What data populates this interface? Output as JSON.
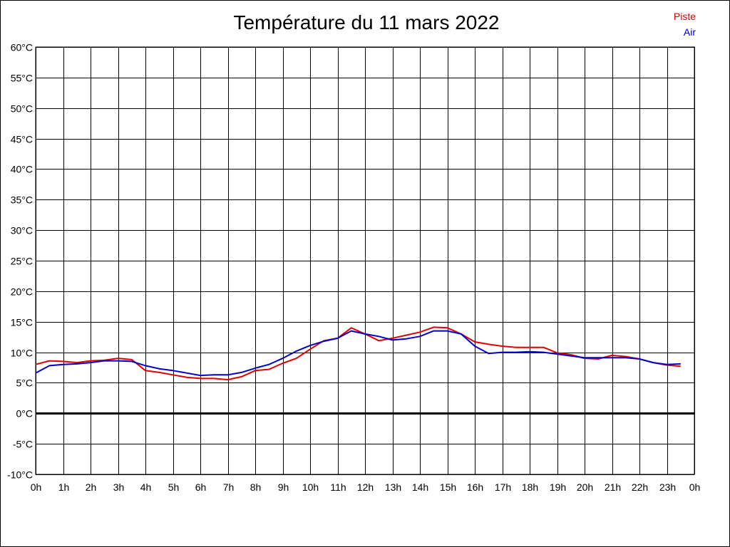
{
  "chart_data": {
    "type": "line",
    "title": "Température du 11 mars 2022",
    "xlabel": "",
    "ylabel": "",
    "xlim": [
      0,
      24
    ],
    "ylim": [
      -10,
      60
    ],
    "grid": true,
    "legend_position": "top-right",
    "x_ticks": [
      "0h",
      "1h",
      "2h",
      "3h",
      "4h",
      "5h",
      "6h",
      "7h",
      "8h",
      "9h",
      "10h",
      "11h",
      "12h",
      "13h",
      "14h",
      "15h",
      "16h",
      "17h",
      "18h",
      "19h",
      "20h",
      "21h",
      "22h",
      "23h",
      "0h"
    ],
    "y_ticks": [
      "-10°C",
      "-5°C",
      "0°C",
      "5°C",
      "10°C",
      "15°C",
      "20°C",
      "25°C",
      "30°C",
      "35°C",
      "40°C",
      "45°C",
      "50°C",
      "55°C",
      "60°C"
    ],
    "series": [
      {
        "name": "Piste",
        "color": "#e00000",
        "x": [
          0,
          0.5,
          1,
          1.5,
          2,
          2.5,
          3,
          3.5,
          4,
          4.5,
          5,
          5.5,
          6,
          6.5,
          7,
          7.5,
          8,
          8.5,
          9,
          9.5,
          10,
          10.5,
          11,
          11.5,
          12,
          12.5,
          13,
          13.5,
          14,
          14.5,
          15,
          15.5,
          16,
          16.5,
          17,
          17.5,
          18,
          18.5,
          19,
          19.5,
          20,
          20.5,
          21,
          21.5,
          22,
          22.5,
          23,
          23.5
        ],
        "values": [
          8.0,
          8.6,
          8.5,
          8.3,
          8.6,
          8.7,
          9.0,
          8.8,
          7.0,
          6.7,
          6.3,
          5.9,
          5.7,
          5.7,
          5.5,
          6.0,
          7.0,
          7.2,
          8.2,
          9.0,
          10.5,
          11.9,
          12.3,
          14.0,
          13.0,
          11.9,
          12.3,
          12.8,
          13.3,
          14.1,
          14.0,
          13.0,
          11.7,
          11.3,
          11.0,
          10.8,
          10.8,
          10.8,
          9.9,
          9.6,
          9.0,
          8.9,
          9.5,
          9.3,
          8.9,
          8.3,
          7.9,
          7.7
        ]
      },
      {
        "name": "Air",
        "color": "#0000cc",
        "x": [
          0,
          0.5,
          1,
          1.5,
          2,
          2.5,
          3,
          3.5,
          4,
          4.5,
          5,
          5.5,
          6,
          6.5,
          7,
          7.5,
          8,
          8.5,
          9,
          9.5,
          10,
          10.5,
          11,
          11.5,
          12,
          12.5,
          13,
          13.5,
          14,
          14.5,
          15,
          15.5,
          16,
          16.5,
          17,
          17.5,
          18,
          18.5,
          19,
          19.5,
          20,
          20.5,
          21,
          21.5,
          22,
          22.5,
          23,
          23.5
        ],
        "values": [
          6.6,
          7.8,
          8.0,
          8.1,
          8.3,
          8.6,
          8.6,
          8.5,
          7.8,
          7.3,
          7.0,
          6.6,
          6.2,
          6.3,
          6.3,
          6.7,
          7.4,
          8.0,
          9.0,
          10.2,
          11.1,
          11.8,
          12.3,
          13.5,
          13.0,
          12.6,
          12.0,
          12.2,
          12.6,
          13.5,
          13.5,
          13.0,
          11.0,
          9.8,
          10.0,
          10.0,
          10.1,
          10.0,
          9.7,
          9.4,
          9.1,
          9.1,
          9.1,
          9.1,
          8.9,
          8.3,
          8.0,
          8.1
        ]
      }
    ]
  }
}
